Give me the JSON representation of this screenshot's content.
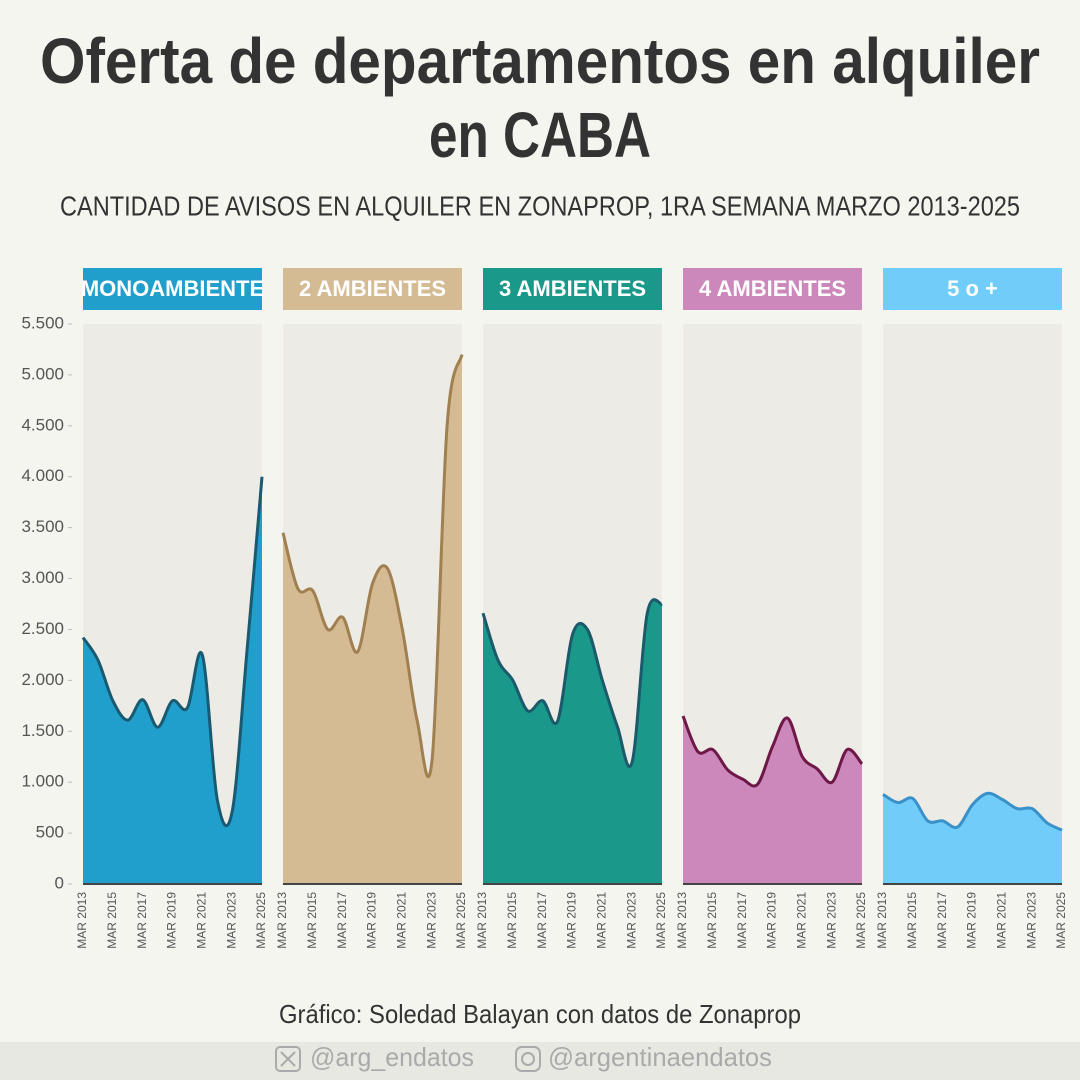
{
  "chart_data": {
    "type": "area",
    "title": [
      "Oferta de departamentos en alquiler",
      "en CABA"
    ],
    "subtitle": "CANTIDAD DE AVISOS EN ALQUILER EN ZONAPROP, 1RA SEMANA MARZO 2013-2025",
    "categories": [
      "MAR 2013",
      null,
      "MAR 2015",
      null,
      "MAR 2017",
      null,
      "MAR 2019",
      null,
      "MAR 2021",
      null,
      "MAR 2023",
      null,
      "MAR 2025"
    ],
    "ylim": [
      0,
      5500
    ],
    "yticks": [
      0,
      500,
      {
        "value": 1000,
        "label": "1.000"
      },
      {
        "value": 1500,
        "label": "1.500"
      },
      {
        "value": 2000,
        "label": "2.000"
      },
      {
        "value": 2500,
        "label": "2.500"
      },
      {
        "value": 3000,
        "label": "3.000"
      },
      {
        "value": 3500,
        "label": "3.500"
      },
      {
        "value": 4000,
        "label": "4.000"
      },
      {
        "value": 4500,
        "label": "4.500"
      },
      {
        "value": 5000,
        "label": "5.000"
      },
      {
        "value": 5500,
        "label": "5.500"
      }
    ],
    "facets": true,
    "series": [
      {
        "name": "MONOAMBIENTE",
        "color": "#219fcc",
        "line_color": "#1a5a70",
        "values": [
          2420,
          2200,
          1800,
          1610,
          1810,
          1540,
          1800,
          1730,
          2250,
          830,
          710,
          2300,
          4000
        ]
      },
      {
        "name": "2 AMBIENTES",
        "color": "#d4bb94",
        "line_color": "#a08050",
        "values": [
          3450,
          2900,
          2880,
          2500,
          2620,
          2280,
          2950,
          3100,
          2500,
          1600,
          1230,
          4500,
          5200
        ]
      },
      {
        "name": "3 AMBIENTES",
        "color": "#1a998a",
        "line_color": "#1a5a6a",
        "values": [
          2660,
          2200,
          2000,
          1700,
          1800,
          1600,
          2450,
          2500,
          2000,
          1550,
          1200,
          2650,
          2750
        ]
      },
      {
        "name": "4 AMBIENTES",
        "color": "#cc88bb",
        "line_color": "#6e1848",
        "values": [
          1650,
          1300,
          1320,
          1120,
          1030,
          980,
          1350,
          1630,
          1250,
          1130,
          1000,
          1320,
          1180
        ]
      },
      {
        "name": "5 o +",
        "color": "#70ccf8",
        "line_color": "#3a90c8",
        "values": [
          880,
          800,
          840,
          620,
          620,
          560,
          780,
          890,
          830,
          740,
          740,
          600,
          530
        ]
      }
    ],
    "source": "Gráfico: Soledad Balayan con datos de Zonaprop",
    "social": [
      "@arg_endatos",
      "@argentinaendatos"
    ]
  }
}
